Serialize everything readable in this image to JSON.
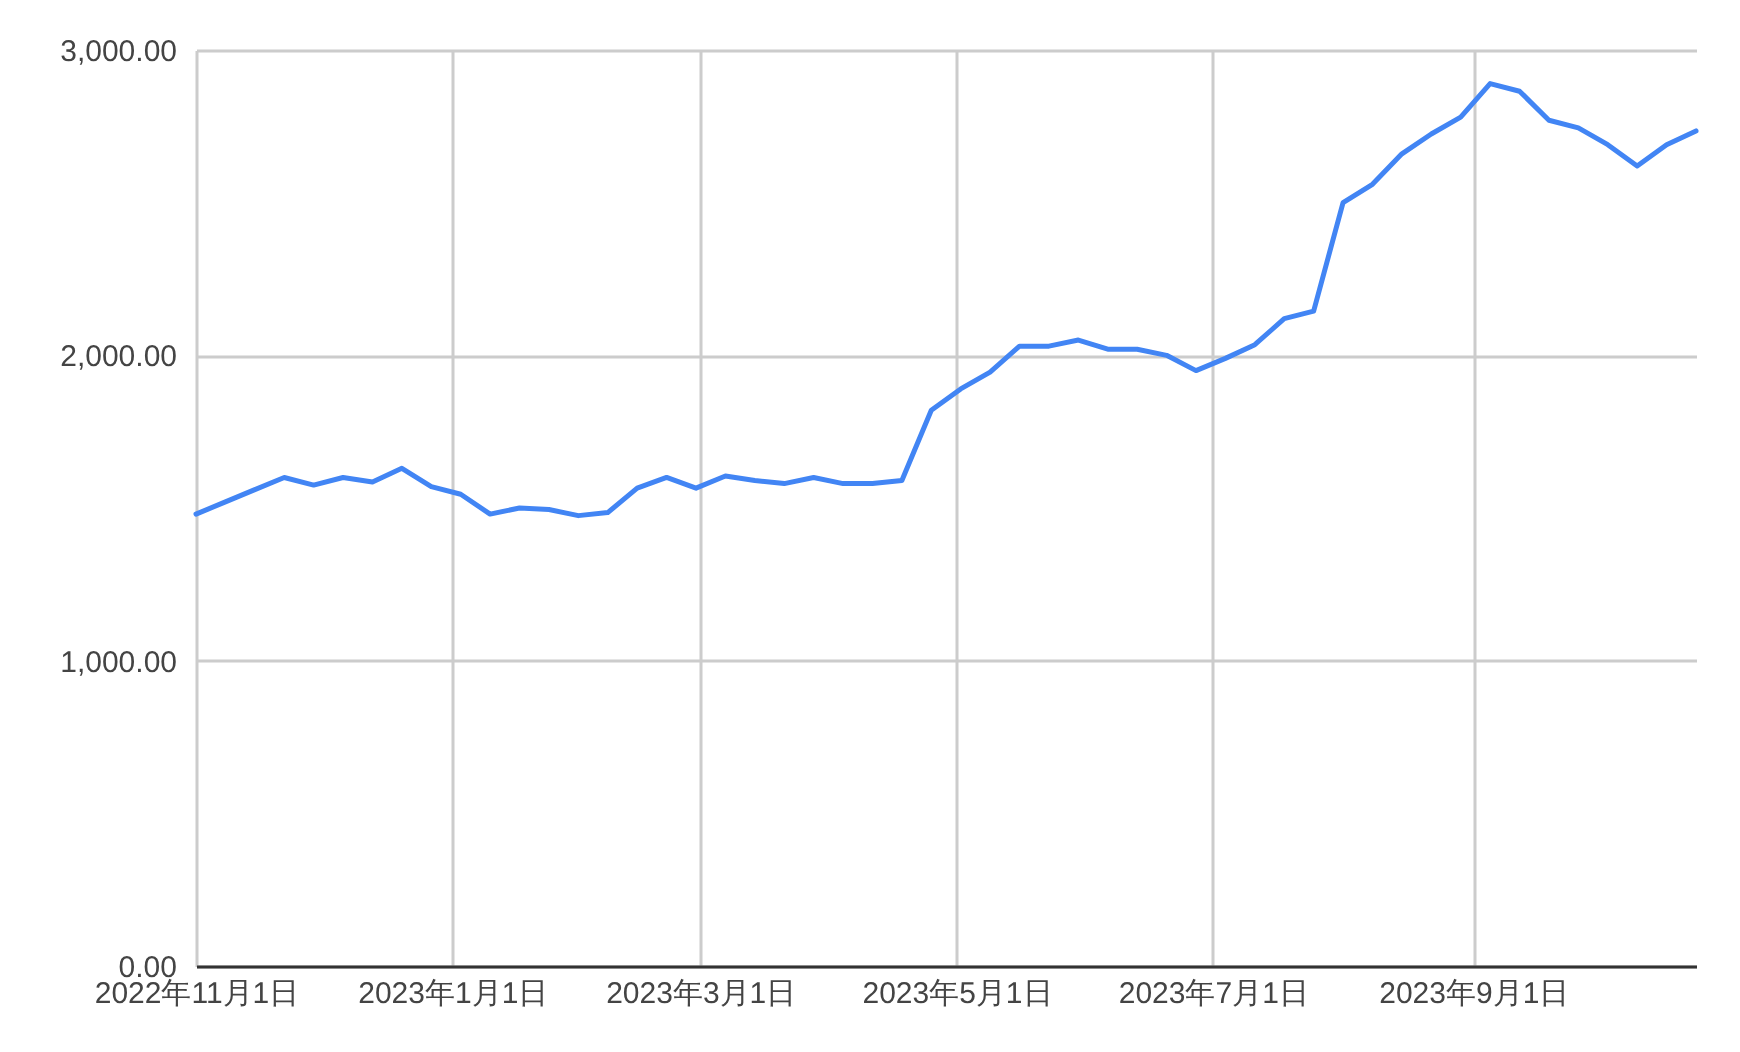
{
  "chart_data": {
    "type": "line",
    "x": [
      "2022-11-01",
      "2022-11-08",
      "2022-11-15",
      "2022-11-22",
      "2022-11-29",
      "2022-12-06",
      "2022-12-13",
      "2022-12-20",
      "2022-12-27",
      "2023-01-03",
      "2023-01-10",
      "2023-01-17",
      "2023-01-24",
      "2023-01-31",
      "2023-02-07",
      "2023-02-14",
      "2023-02-21",
      "2023-02-28",
      "2023-03-07",
      "2023-03-14",
      "2023-03-21",
      "2023-03-28",
      "2023-04-04",
      "2023-04-11",
      "2023-04-18",
      "2023-04-25",
      "2023-05-02",
      "2023-05-09",
      "2023-05-16",
      "2023-05-23",
      "2023-05-30",
      "2023-06-06",
      "2023-06-13",
      "2023-06-20",
      "2023-06-27",
      "2023-07-04",
      "2023-07-11",
      "2023-07-18",
      "2023-07-25",
      "2023-08-01",
      "2023-08-08",
      "2023-08-15",
      "2023-08-22",
      "2023-08-29",
      "2023-09-05",
      "2023-09-12",
      "2023-09-19",
      "2023-09-26",
      "2023-10-03",
      "2023-10-10",
      "2023-10-17",
      "2023-10-24"
    ],
    "series": [
      {
        "color": "#4285f4",
        "values": [
          1480,
          1520,
          1560,
          1600,
          1575,
          1600,
          1585,
          1630,
          1570,
          1545,
          1480,
          1500,
          1495,
          1475,
          1485,
          1565,
          1600,
          1565,
          1605,
          1590,
          1580,
          1600,
          1580,
          1580,
          1590,
          1820,
          1890,
          1945,
          2030,
          2030,
          2050,
          2020,
          2020,
          2000,
          1950,
          1990,
          2035,
          2120,
          2145,
          2500,
          2560,
          2660,
          2725,
          2780,
          2890,
          2865,
          2770,
          2745,
          2690,
          2620,
          2690,
          2735
        ]
      }
    ],
    "xlim": [
      "2022-11-01",
      "2023-10-24"
    ],
    "xticks": [
      {
        "value": "2022-11-01",
        "label": "2022年11月1日"
      },
      {
        "value": "2023-01-01",
        "label": "2023年1月1日"
      },
      {
        "value": "2023-03-01",
        "label": "2023年3月1日"
      },
      {
        "value": "2023-05-01",
        "label": "2023年5月1日"
      },
      {
        "value": "2023-07-01",
        "label": "2023年7月1日"
      },
      {
        "value": "2023-09-01",
        "label": "2023年9月1日"
      }
    ],
    "ylim": [
      0,
      3000
    ],
    "yticks": [
      {
        "value": 0,
        "label": "0.00"
      },
      {
        "value": 1000,
        "label": "1,000.00"
      },
      {
        "value": 2000,
        "label": "2,000.00"
      },
      {
        "value": 3000,
        "label": "3,000.00"
      }
    ],
    "grid": true,
    "marker": "none",
    "line_style": "solid"
  }
}
